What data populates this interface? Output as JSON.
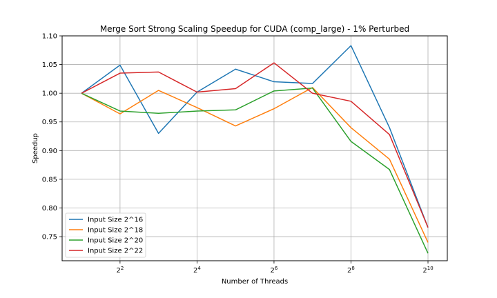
{
  "chart_data": {
    "type": "line",
    "title": "Merge Sort Strong Scaling Speedup for CUDA (comp_large) - 1% Perturbed",
    "xlabel": "Number of Threads",
    "ylabel": "Speedup",
    "x_scale": "log2",
    "x": [
      2,
      4,
      8,
      16,
      32,
      64,
      128,
      256,
      512,
      1024
    ],
    "xlim": [
      1.41,
      1450
    ],
    "ylim": [
      0.708,
      1.1
    ],
    "x_ticks": [
      {
        "value": 4,
        "base": "2",
        "exp": "2"
      },
      {
        "value": 16,
        "base": "2",
        "exp": "4"
      },
      {
        "value": 64,
        "base": "2",
        "exp": "6"
      },
      {
        "value": 256,
        "base": "2",
        "exp": "8"
      },
      {
        "value": 1024,
        "base": "2",
        "exp": "10"
      }
    ],
    "y_ticks": [
      {
        "value": 0.75,
        "label": "0.75"
      },
      {
        "value": 0.8,
        "label": "0.80"
      },
      {
        "value": 0.85,
        "label": "0.85"
      },
      {
        "value": 0.9,
        "label": "0.90"
      },
      {
        "value": 0.95,
        "label": "0.95"
      },
      {
        "value": 1.0,
        "label": "1.00"
      },
      {
        "value": 1.05,
        "label": "1.05"
      },
      {
        "value": 1.1,
        "label": "1.10"
      }
    ],
    "grid": true,
    "legend_position": "lower-left",
    "series": [
      {
        "name": "Input Size 2^16",
        "color": "#1f77b4",
        "values": [
          1.0,
          1.049,
          0.93,
          1.002,
          1.042,
          1.02,
          1.017,
          1.083,
          0.94,
          0.766
        ]
      },
      {
        "name": "Input Size 2^18",
        "color": "#ff7f0e",
        "values": [
          1.0,
          0.964,
          1.005,
          0.975,
          0.943,
          0.973,
          1.01,
          0.94,
          0.885,
          0.74
        ]
      },
      {
        "name": "Input Size 2^20",
        "color": "#2ca02c",
        "values": [
          1.0,
          0.969,
          0.965,
          0.969,
          0.971,
          1.004,
          1.009,
          0.916,
          0.867,
          0.721
        ]
      },
      {
        "name": "Input Size 2^22",
        "color": "#d62728",
        "values": [
          1.0,
          1.035,
          1.037,
          1.002,
          1.008,
          1.053,
          1.0,
          0.986,
          0.928,
          0.766
        ]
      }
    ]
  }
}
